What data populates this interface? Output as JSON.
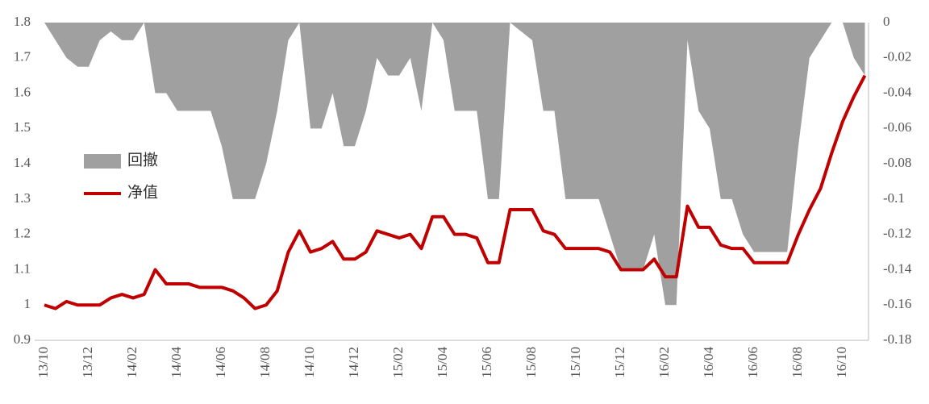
{
  "chart_data": {
    "type": "line",
    "categories": [
      "13/10",
      null,
      null,
      null,
      "13/12",
      null,
      null,
      null,
      "14/02",
      null,
      null,
      null,
      "14/04",
      null,
      null,
      null,
      "14/06",
      null,
      null,
      null,
      "14/08",
      null,
      null,
      null,
      "14/10",
      null,
      null,
      null,
      "14/12",
      null,
      null,
      null,
      "15/02",
      null,
      null,
      null,
      "15/04",
      null,
      null,
      null,
      "15/06",
      null,
      null,
      null,
      "15/08",
      null,
      null,
      null,
      "15/10",
      null,
      null,
      null,
      "15/12",
      null,
      null,
      null,
      "16/02",
      null,
      null,
      null,
      "16/04",
      null,
      null,
      null,
      "16/06",
      null,
      null,
      null,
      "16/08",
      null,
      null,
      null,
      "16/10",
      null,
      null
    ],
    "series": [
      {
        "name": "回撤",
        "color": "#a0a0a0",
        "type": "area",
        "axis": "y2",
        "values": [
          0,
          -0.01,
          -0.02,
          -0.025,
          -0.025,
          -0.01,
          -0.005,
          -0.01,
          -0.01,
          0,
          -0.04,
          -0.04,
          -0.05,
          -0.05,
          -0.05,
          -0.05,
          -0.07,
          -0.1,
          -0.1,
          -0.1,
          -0.08,
          -0.05,
          -0.01,
          0,
          -0.06,
          -0.06,
          -0.04,
          -0.07,
          -0.07,
          -0.05,
          -0.02,
          -0.03,
          -0.03,
          -0.02,
          -0.05,
          0,
          -0.01,
          -0.05,
          -0.05,
          -0.05,
          -0.1,
          -0.1,
          0,
          -0.005,
          -0.01,
          -0.05,
          -0.05,
          -0.1,
          -0.1,
          -0.1,
          -0.1,
          -0.12,
          -0.14,
          -0.14,
          -0.14,
          -0.12,
          -0.16,
          -0.16,
          -0.01,
          -0.05,
          -0.06,
          -0.1,
          -0.1,
          -0.12,
          -0.13,
          -0.13,
          -0.13,
          -0.13,
          -0.07,
          -0.02,
          -0.01,
          0,
          0,
          -0.02,
          -0.03
        ]
      },
      {
        "name": "净值",
        "color": "#c00000",
        "type": "line",
        "values": [
          1,
          0.99,
          1.01,
          1,
          1,
          1,
          1.02,
          1.03,
          1.02,
          1.03,
          1.1,
          1.06,
          1.06,
          1.06,
          1.05,
          1.05,
          1.05,
          1.04,
          1.02,
          0.99,
          1,
          1.04,
          1.15,
          1.21,
          1.15,
          1.16,
          1.18,
          1.13,
          1.13,
          1.15,
          1.21,
          1.2,
          1.19,
          1.2,
          1.16,
          1.25,
          1.25,
          1.2,
          1.2,
          1.19,
          1.12,
          1.12,
          1.27,
          1.27,
          1.27,
          1.21,
          1.2,
          1.16,
          1.16,
          1.16,
          1.16,
          1.15,
          1.1,
          1.1,
          1.1,
          1.13,
          1.08,
          1.08,
          1.28,
          1.22,
          1.22,
          1.17,
          1.16,
          1.16,
          1.12,
          1.12,
          1.12,
          1.12,
          1.2,
          1.27,
          1.33,
          1.43,
          1.52,
          1.59,
          1.65
        ]
      }
    ],
    "ylim": [
      0.9,
      1.8
    ],
    "yticks": [
      0.9,
      1,
      1.1,
      1.2,
      1.3,
      1.4,
      1.5,
      1.6,
      1.7,
      1.8
    ],
    "y2lim": [
      -0.18,
      0
    ],
    "y2ticks": [
      -0.18,
      -0.16,
      -0.14,
      -0.12,
      -0.1,
      -0.08,
      -0.06,
      -0.04,
      -0.02,
      0
    ]
  }
}
